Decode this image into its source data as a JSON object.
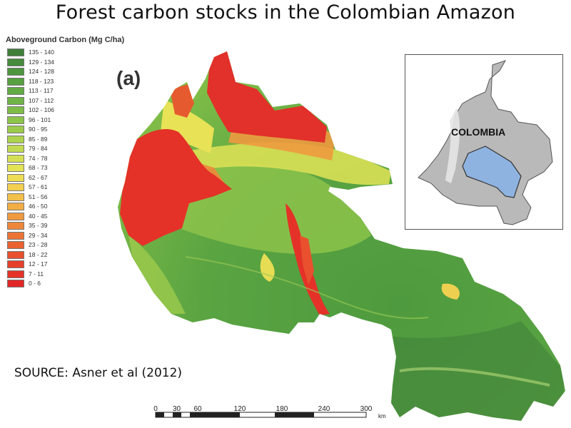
{
  "title": "Forest carbon stocks in the Colombian Amazon",
  "legend": {
    "title": "Aboveground Carbon (Mg C/ha)",
    "items": [
      {
        "label": "135 - 140",
        "color": "#3f7f3a"
      },
      {
        "label": "129 - 134",
        "color": "#468a3c"
      },
      {
        "label": "124 - 128",
        "color": "#4e953f"
      },
      {
        "label": "118 - 123",
        "color": "#58a042"
      },
      {
        "label": "113 - 117",
        "color": "#63aa44"
      },
      {
        "label": "107 - 112",
        "color": "#70b346"
      },
      {
        "label": "102 - 106",
        "color": "#7ebc48"
      },
      {
        "label": "96 - 101",
        "color": "#8dc44a"
      },
      {
        "label": "90 - 95",
        "color": "#9ccb4c"
      },
      {
        "label": "85 - 89",
        "color": "#acd24f"
      },
      {
        "label": "79 - 84",
        "color": "#c0da52"
      },
      {
        "label": "74 - 78",
        "color": "#d3e055"
      },
      {
        "label": "68 - 73",
        "color": "#e3e356"
      },
      {
        "label": "62 - 67",
        "color": "#eedd55"
      },
      {
        "label": "57 - 61",
        "color": "#f2cf4f"
      },
      {
        "label": "51 - 56",
        "color": "#f3c04a"
      },
      {
        "label": "46 - 50",
        "color": "#f2ad44"
      },
      {
        "label": "40 - 45",
        "color": "#f09a3f"
      },
      {
        "label": "35 - 39",
        "color": "#ee873a"
      },
      {
        "label": "29 - 34",
        "color": "#ec7436"
      },
      {
        "label": "23 - 28",
        "color": "#ea6232"
      },
      {
        "label": "18 - 22",
        "color": "#e8502e"
      },
      {
        "label": "12 - 17",
        "color": "#e6402b"
      },
      {
        "label": "7 - 11",
        "color": "#e43228"
      },
      {
        "label": "0 - 6",
        "color": "#e22626"
      }
    ]
  },
  "panel_label": "(a)",
  "source": "SOURCE: Asner et al (2012)",
  "inset": {
    "label": "COLOMBIA",
    "country_color": "#b9b9b9",
    "region_color": "#8fb3e0"
  },
  "scale_bar": {
    "ticks": [
      "0",
      "30",
      "60",
      "120",
      "180",
      "240",
      "300"
    ],
    "unit": "km"
  }
}
